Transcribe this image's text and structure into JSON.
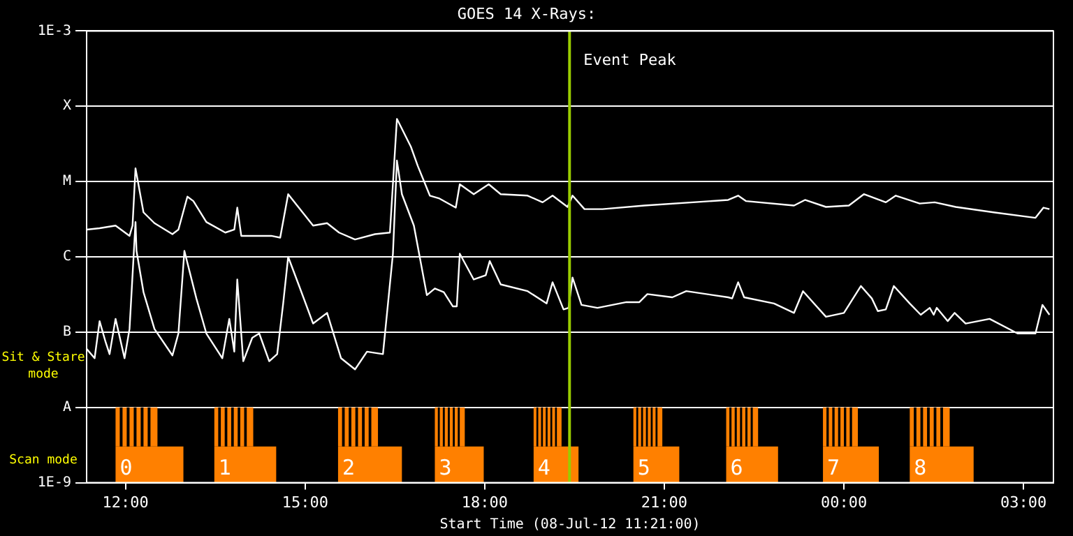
{
  "chart_data": {
    "type": "line",
    "title": "GOES 14 X-Rays:",
    "xlabel": "Start Time (08-Jul-12 11:21:00)",
    "xlim": [
      "--07-08T11:21",
      "--07-09T03:30"
    ],
    "xticks": [
      {
        "value": "--07-08T12:00",
        "label": "12:00"
      },
      {
        "value": "--07-08T15:00",
        "label": "15:00"
      },
      {
        "value": "--07-08T18:00",
        "label": "18:00"
      },
      {
        "value": "--07-08T21:00",
        "label": "21:00"
      },
      {
        "value": "--07-09T00:00",
        "label": "00:00"
      },
      {
        "value": "--07-09T03:00",
        "label": "03:00"
      }
    ],
    "ylim": [
      1e-09,
      0.001
    ],
    "yticks": [
      {
        "value": 1e-09,
        "label": "1E-9"
      },
      {
        "value": 1e-08,
        "label": "A"
      },
      {
        "value": 1e-07,
        "label": "B"
      },
      {
        "value": 1e-06,
        "label": "C"
      },
      {
        "value": 1e-05,
        "label": "M"
      },
      {
        "value": 0.0001,
        "label": "X"
      },
      {
        "value": 0.001,
        "label": "1E-3"
      }
    ],
    "log": "y",
    "grid": "y",
    "legend": false,
    "series": [
      {
        "color": "#ffffff",
        "x": [
          "--07-08T11:21",
          "--07-08T11:34",
          "--07-08T11:50",
          "--07-08T12:04",
          "--07-08T12:07",
          "--07-08T12:10",
          "--07-08T12:18",
          "--07-08T12:29",
          "--07-08T12:47",
          "--07-08T12:53",
          "--07-08T13:02",
          "--07-08T13:08",
          "--07-08T13:21",
          "--07-08T13:40",
          "--07-08T13:49",
          "--07-08T13:52",
          "--07-08T13:56",
          "--07-08T14:07",
          "--07-08T14:26",
          "--07-08T14:35",
          "--07-08T14:43",
          "--07-08T14:52",
          "--07-08T15:08",
          "--07-08T15:22",
          "--07-08T15:34",
          "--07-08T15:50",
          "--07-08T16:10",
          "--07-08T16:25",
          "--07-08T16:32",
          "--07-08T16:46",
          "--07-08T16:53",
          "--07-08T17:05",
          "--07-08T17:14",
          "--07-08T17:31",
          "--07-08T17:35",
          "--07-08T17:49",
          "--07-08T18:04",
          "--07-08T18:16",
          "--07-08T18:43",
          "--07-08T18:58",
          "--07-08T19:08",
          "--07-08T19:23",
          "--07-08T19:28",
          "--07-08T19:40",
          "--07-08T19:58",
          "--07-08T20:40",
          "--07-08T22:04",
          "--07-08T22:14",
          "--07-08T22:22",
          "--07-08T23:10",
          "--07-08T23:21",
          "--07-08T23:42",
          "--07-09T00:05",
          "--07-09T00:20",
          "--07-09T00:42",
          "--07-09T00:52",
          "--07-09T01:16",
          "--07-09T01:31",
          "--07-09T01:52",
          "--07-09T02:30",
          "--07-09T03:12",
          "--07-09T03:20",
          "--07-09T03:26"
        ],
        "values": [
          2.3e-06,
          2.4e-06,
          2.6e-06,
          1.9e-06,
          2.6e-06,
          1.5e-05,
          3.9e-06,
          2.8e-06,
          2e-06,
          2.3e-06,
          6.3e-06,
          5.5e-06,
          2.9e-06,
          2.1e-06,
          2.3e-06,
          4.5e-06,
          1.9e-06,
          1.9e-06,
          1.9e-06,
          1.8e-06,
          6.8e-06,
          4.8e-06,
          2.6e-06,
          2.8e-06,
          2.1e-06,
          1.7e-06,
          2e-06,
          2.1e-06,
          6.8e-05,
          2.9e-05,
          1.6e-05,
          6.5e-06,
          6e-06,
          4.5e-06,
          9.2e-06,
          6.8e-06,
          9.2e-06,
          6.8e-06,
          6.5e-06,
          5.3e-06,
          6.5e-06,
          4.6e-06,
          6.5e-06,
          4.3e-06,
          4.3e-06,
          4.8e-06,
          5.7e-06,
          6.5e-06,
          5.5e-06,
          4.8e-06,
          5.7e-06,
          4.6e-06,
          4.8e-06,
          6.8e-06,
          5.3e-06,
          6.5e-06,
          5.1e-06,
          5.3e-06,
          4.6e-06,
          3.9e-06,
          3.3e-06,
          4.5e-06,
          4.3e-06
        ]
      },
      {
        "color": "#ffffff",
        "x": [
          "--07-08T11:21",
          "--07-08T11:29",
          "--07-08T11:34",
          "--07-08T11:40",
          "--07-08T11:44",
          "--07-08T11:50",
          "--07-08T11:59",
          "--07-08T12:04",
          "--07-08T12:10",
          "--07-08T12:11",
          "--07-08T12:18",
          "--07-08T12:29",
          "--07-08T12:47",
          "--07-08T12:53",
          "--07-08T12:59",
          "--07-08T13:11",
          "--07-08T13:21",
          "--07-08T13:37",
          "--07-08T13:44",
          "--07-08T13:49",
          "--07-08T13:52",
          "--07-08T13:58",
          "--07-08T14:07",
          "--07-08T14:14",
          "--07-08T14:24",
          "--07-08T14:32",
          "--07-08T14:38",
          "--07-08T14:43",
          "--07-08T14:54",
          "--07-08T15:08",
          "--07-08T15:22",
          "--07-08T15:36",
          "--07-08T15:50",
          "--07-08T16:02",
          "--07-08T16:18",
          "--07-08T16:28",
          "--07-08T16:32",
          "--07-08T16:37",
          "--07-08T16:49",
          "--07-08T17:02",
          "--07-08T17:10",
          "--07-08T17:19",
          "--07-08T17:28",
          "--07-08T17:32",
          "--07-08T17:35",
          "--07-08T17:49",
          "--07-08T18:01",
          "--07-08T18:05",
          "--07-08T18:16",
          "--07-08T18:43",
          "--07-08T19:02",
          "--07-08T19:08",
          "--07-08T19:19",
          "--07-08T19:24",
          "--07-08T19:28",
          "--07-08T19:37",
          "--07-08T19:53",
          "--07-08T20:22",
          "--07-08T20:35",
          "--07-08T20:43",
          "--07-08T21:08",
          "--07-08T21:22",
          "--07-08T22:04",
          "--07-08T22:08",
          "--07-08T22:14",
          "--07-08T22:20",
          "--07-08T22:50",
          "--07-08T23:10",
          "--07-08T23:19",
          "--07-08T23:42",
          "--07-09T00:00",
          "--07-09T00:17",
          "--07-09T00:28",
          "--07-09T00:34",
          "--07-09T00:42",
          "--07-09T00:50",
          "--07-09T01:06",
          "--07-09T01:17",
          "--07-09T01:26",
          "--07-09T01:30",
          "--07-09T01:33",
          "--07-09T01:44",
          "--07-09T01:51",
          "--07-09T02:02",
          "--07-09T02:26",
          "--07-09T02:54",
          "--07-09T03:12",
          "--07-09T03:19",
          "--07-09T03:26"
        ],
        "values": [
          6e-08,
          4.5e-08,
          1.4e-07,
          7.4e-08,
          5.1e-08,
          1.5e-07,
          4.5e-08,
          1.1e-07,
          2.9e-06,
          1.2e-06,
          3.4e-07,
          1.1e-07,
          4.9e-08,
          9.6e-08,
          1.2e-06,
          2.8e-07,
          9.6e-08,
          4.5e-08,
          1.5e-07,
          5.5e-08,
          5e-07,
          4.1e-08,
          8.4e-08,
          9.6e-08,
          4.1e-08,
          5.1e-08,
          2.4e-07,
          1e-06,
          4.1e-07,
          1.3e-07,
          1.8e-07,
          4.5e-08,
          3.2e-08,
          5.5e-08,
          5.1e-08,
          1.1e-06,
          1.9e-05,
          6.8e-06,
          2.6e-06,
          3.1e-07,
          3.8e-07,
          3.4e-07,
          2.2e-07,
          2.2e-07,
          1.1e-06,
          5e-07,
          5.7e-07,
          8.8e-07,
          4.3e-07,
          3.5e-07,
          2.4e-07,
          4.6e-07,
          2e-07,
          2.1e-07,
          5.3e-07,
          2.3e-07,
          2.1e-07,
          2.5e-07,
          2.5e-07,
          3.2e-07,
          2.9e-07,
          3.5e-07,
          2.9e-07,
          2.8e-07,
          4.6e-07,
          2.9e-07,
          2.4e-07,
          1.8e-07,
          3.5e-07,
          1.6e-07,
          1.8e-07,
          4.1e-07,
          2.8e-07,
          1.9e-07,
          2e-07,
          4.1e-07,
          2.4e-07,
          1.7e-07,
          2.1e-07,
          1.7e-07,
          2.1e-07,
          1.4e-07,
          1.8e-07,
          1.3e-07,
          1.5e-07,
          9.6e-08,
          9.6e-08,
          2.3e-07,
          1.7e-07
        ]
      }
    ],
    "ref_lines": [
      {
        "axis": "x",
        "value": "--07-08T19:25",
        "label": "Event Peak",
        "color": "#99cc00"
      }
    ],
    "bands": [
      {
        "axis": "x",
        "from": "--07-08T11:50",
        "to": "--07-08T12:58",
        "label": "0",
        "color": "#ff8000"
      },
      {
        "axis": "x",
        "from": "--07-08T13:29",
        "to": "--07-08T14:31",
        "label": "1",
        "color": "#ff8000"
      },
      {
        "axis": "x",
        "from": "--07-08T15:33",
        "to": "--07-08T16:37",
        "label": "2",
        "color": "#ff8000"
      },
      {
        "axis": "x",
        "from": "--07-08T17:10",
        "to": "--07-08T17:59",
        "label": "3",
        "color": "#ff8000"
      },
      {
        "axis": "x",
        "from": "--07-08T18:49",
        "to": "--07-08T19:34",
        "label": "4",
        "color": "#ff8000"
      },
      {
        "axis": "x",
        "from": "--07-08T20:29",
        "to": "--07-08T21:15",
        "label": "5",
        "color": "#ff8000"
      },
      {
        "axis": "x",
        "from": "--07-08T22:02",
        "to": "--07-08T22:54",
        "label": "6",
        "color": "#ff8000"
      },
      {
        "axis": "x",
        "from": "--07-08T23:39",
        "to": "--07-09T00:35",
        "label": "7",
        "color": "#ff8000"
      },
      {
        "axis": "x",
        "from": "--07-09T01:06",
        "to": "--07-09T02:10",
        "label": "8",
        "color": "#ff8000"
      },
      {
        "axis": "x",
        "from": "--07-08T11:50",
        "to": "--07-08T12:32",
        "color": "#ff8000"
      },
      {
        "axis": "x",
        "from": "--07-08T13:29",
        "to": "--07-08T14:08",
        "color": "#ff8000"
      },
      {
        "axis": "x",
        "from": "--07-08T15:33",
        "to": "--07-08T16:13",
        "color": "#ff8000"
      },
      {
        "axis": "x",
        "from": "--07-08T17:10",
        "to": "--07-08T17:40",
        "color": "#ff8000"
      },
      {
        "axis": "x",
        "from": "--07-08T18:49",
        "to": "--07-08T19:17",
        "color": "#ff8000"
      },
      {
        "axis": "x",
        "from": "--07-08T20:29",
        "to": "--07-08T20:58",
        "color": "#ff8000"
      },
      {
        "axis": "x",
        "from": "--07-08T22:02",
        "to": "--07-08T22:34",
        "color": "#ff8000"
      },
      {
        "axis": "x",
        "from": "--07-08T23:39",
        "to": "--07-09T00:14",
        "color": "#ff8000"
      },
      {
        "axis": "x",
        "from": "--07-09T01:06",
        "to": "--07-09T01:46",
        "color": "#ff8000"
      }
    ],
    "annotations": [
      "Sit & Stare mode",
      "Scan mode"
    ]
  }
}
